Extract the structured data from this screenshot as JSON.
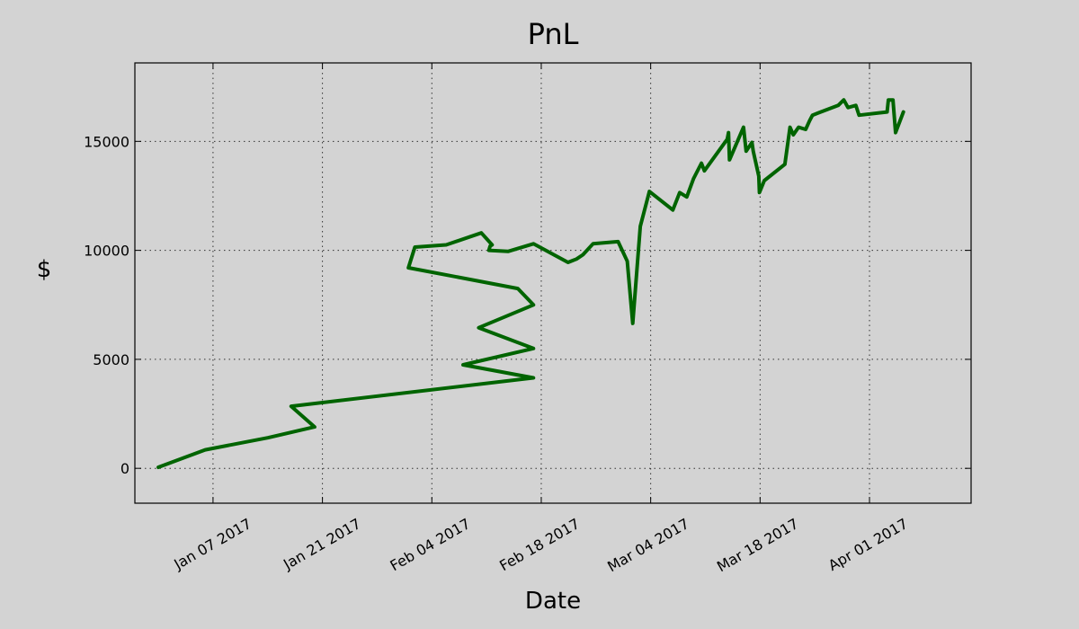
{
  "chart_data": {
    "type": "line",
    "title": "PnL",
    "xlabel": "Date",
    "ylabel": "$",
    "grid": true,
    "xlim": [
      "2016-12-28",
      "2017-04-14"
    ],
    "ylim": [
      -1600,
      18600
    ],
    "x_ticks": [
      "2017-01-07",
      "2017-01-21",
      "2017-02-04",
      "2017-02-18",
      "2017-03-04",
      "2017-03-18",
      "2017-04-01"
    ],
    "x_tick_labels": [
      "Jan 07 2017",
      "Jan 21 2017",
      "Feb 04 2017",
      "Feb 18 2017",
      "Mar 04 2017",
      "Mar 18 2017",
      "Apr 01 2017"
    ],
    "y_ticks": [
      0,
      5000,
      10000,
      15000
    ],
    "y_tick_labels": [
      "0",
      "5000",
      "10000",
      "15000"
    ],
    "colors": {
      "background": "#d3d3d3",
      "plot_area": "#ffffff00",
      "line": "#006400"
    },
    "series": [
      {
        "x": [
          "2016-12-31T00:00",
          "2017-01-06T00:00",
          "2017-01-14T00:00",
          "2017-01-20T00:00",
          "2017-01-17T00:00",
          "2017-02-17T00:00",
          "2017-02-08T00:00",
          "2017-02-17T00:00",
          "2017-02-10T00:00",
          "2017-02-17T00:00",
          "2017-02-15T00:00",
          "2017-02-01T00:00",
          "2017-02-01T20:00",
          "2017-02-05T20:00",
          "2017-02-10T08:00",
          "2017-02-11T17:00",
          "2017-02-11T11:00",
          "2017-02-11T07:00",
          "2017-02-13T18:00",
          "2017-02-17T00:00",
          "2017-02-21T10:00",
          "2017-02-22T12:00",
          "2017-02-23T08:00",
          "2017-02-24T15:00",
          "2017-02-27T20:00",
          "2017-03-01T00:00",
          "2017-03-01T17:00",
          "2017-03-02T16:00",
          "2017-03-03T20:00",
          "2017-03-06T20:00",
          "2017-03-07T17:00",
          "2017-03-08T15:00",
          "2017-03-09T12:00",
          "2017-03-10T12:00",
          "2017-03-10T21:00",
          "2017-03-13T19:00",
          "2017-03-13T23:00",
          "2017-03-14T02:00",
          "2017-03-15T21:00",
          "2017-03-16T05:00",
          "2017-03-16T23:00",
          "2017-03-17T03:00",
          "2017-03-17T20:00",
          "2017-03-17T22:00",
          "2017-03-18T13:00",
          "2017-03-21T04:00",
          "2017-03-21T20:00",
          "2017-03-22T06:00",
          "2017-03-22T22:00",
          "2017-03-23T20:00",
          "2017-03-24T08:00",
          "2017-03-24T17:00",
          "2017-03-25T10:00",
          "2017-03-28T00:00",
          "2017-03-28T17:00",
          "2017-03-29T06:00",
          "2017-03-30T06:00",
          "2017-03-30T16:00",
          "2017-04-03T06:00",
          "2017-04-03T10:00",
          "2017-04-04T00:00",
          "2017-04-04T08:00",
          "2017-04-05T08:00"
        ],
        "y": [
          50,
          850,
          1400,
          1900,
          2850,
          4150,
          4750,
          5500,
          6450,
          7500,
          8250,
          9200,
          10150,
          10250,
          10800,
          10250,
          10200,
          10000,
          9950,
          10300,
          9450,
          9600,
          9800,
          10300,
          10400,
          9500,
          6650,
          11100,
          12700,
          11850,
          12650,
          12450,
          13300,
          14000,
          13650,
          15100,
          15400,
          14150,
          15650,
          14550,
          14950,
          14550,
          13400,
          12650,
          13200,
          13950,
          15650,
          15300,
          15650,
          15550,
          15950,
          16200,
          16300,
          16650,
          16900,
          16550,
          16650,
          16200,
          16350,
          16900,
          16900,
          15400,
          16350
        ]
      }
    ]
  }
}
